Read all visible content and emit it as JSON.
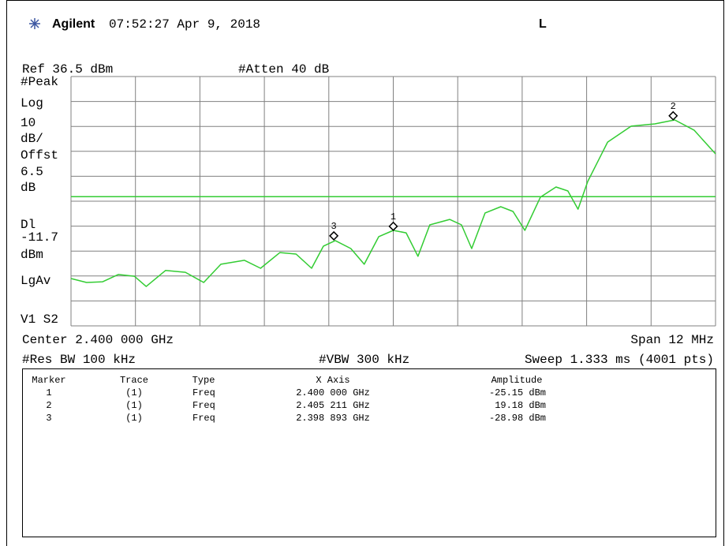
{
  "header": {
    "brand": "Agilent",
    "timestamp": "07:52:27 Apr 9, 2018",
    "indicator": "L"
  },
  "settings": {
    "ref": "Ref 36.5 dBm",
    "atten": "#Atten 40 dB",
    "center": "Center 2.400 000 GHz",
    "span": "Span 12 MHz",
    "res_bw": "#Res BW 100 kHz",
    "vbw": "#VBW 300 kHz",
    "sweep": "Sweep 1.333 ms (4001 pts)"
  },
  "side_labels": [
    "#Peak",
    "Log",
    "10",
    "dB/",
    "Offst",
    "6.5",
    "dB",
    "Dl"
  ],
  "display_line": -11.7,
  "side_labels_lower": [
    "dBm",
    "LgAv",
    "V1  S2"
  ],
  "trace": {
    "color": "#33cc33",
    "xlim": [
      2.394,
      2.406
    ],
    "ylim": [
      -63.5,
      36.5
    ],
    "x": [
      2.394,
      2.39429,
      2.39459,
      2.39488,
      2.39518,
      2.3954,
      2.39576,
      2.39613,
      2.39647,
      2.39679,
      2.39723,
      2.39753,
      2.39789,
      2.39819,
      2.39848,
      2.3987,
      2.39892,
      2.39921,
      2.39946,
      2.39973,
      2.4,
      2.40024,
      2.40046,
      2.40068,
      2.40105,
      2.40127,
      2.40146,
      2.40171,
      2.402,
      2.40223,
      2.40245,
      2.40274,
      2.40303,
      2.40325,
      2.40344,
      2.40362,
      2.40399,
      2.40443,
      2.40487,
      2.40524,
      2.4056,
      2.406
    ],
    "values": [
      -44.5,
      -46.1,
      -45.8,
      -42.9,
      -43.6,
      -47.7,
      -41.3,
      -42.0,
      -46.1,
      -38.8,
      -37.2,
      -40.4,
      -34.1,
      -34.7,
      -40.4,
      -31.5,
      -29.3,
      -32.5,
      -38.8,
      -27.7,
      -25.2,
      -26.2,
      -35.6,
      -23.0,
      -20.8,
      -23.0,
      -32.5,
      -18.2,
      -15.7,
      -17.6,
      -25.2,
      -11.9,
      -7.8,
      -9.4,
      -16.7,
      -5.6,
      10.2,
      16.6,
      17.5,
      19.1,
      15.0,
      5.5
    ]
  },
  "marker_table": {
    "columns": [
      "Marker",
      "Trace",
      "Type",
      "X Axis",
      "Amplitude"
    ],
    "rows": [
      {
        "number": "1",
        "trace": "(1)",
        "type": "Freq",
        "x_axis": "2.400 000 GHz",
        "amplitude": "-25.15 dBm",
        "freq": 2.4,
        "dbm": -25.15
      },
      {
        "number": "2",
        "trace": "(1)",
        "type": "Freq",
        "x_axis": "2.405 211 GHz",
        "amplitude": "19.18 dBm",
        "freq": 2.405211,
        "dbm": 19.18
      },
      {
        "number": "3",
        "trace": "(1)",
        "type": "Freq",
        "x_axis": "2.398 893 GHz",
        "amplitude": "-28.98 dBm",
        "freq": 2.398893,
        "dbm": -28.98
      }
    ]
  }
}
